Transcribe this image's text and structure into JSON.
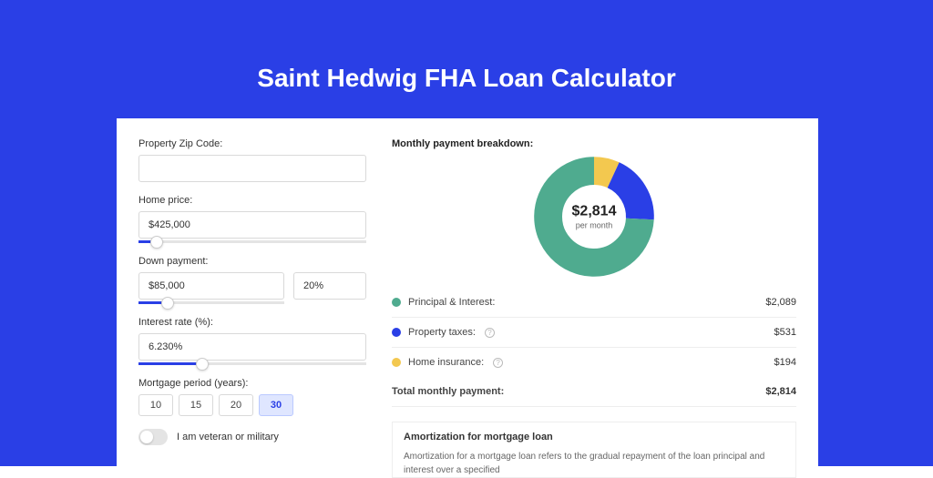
{
  "page": {
    "bg_color": "#2a3fe6",
    "title": "Saint Hedwig FHA Loan Calculator",
    "title_color": "#ffffff",
    "title_fontsize": 28
  },
  "form": {
    "zip": {
      "label": "Property Zip Code:",
      "value": ""
    },
    "home_price": {
      "label": "Home price:",
      "value": "$425,000",
      "slider_pct": 8
    },
    "down_payment": {
      "label": "Down payment:",
      "value": "$85,000",
      "pct_value": "20%",
      "slider_pct": 20
    },
    "interest": {
      "label": "Interest rate (%):",
      "value": "6.230%",
      "slider_pct": 28
    },
    "period": {
      "label": "Mortgage period (years):",
      "options": [
        "10",
        "15",
        "20",
        "30"
      ],
      "selected": "30"
    },
    "veteran": {
      "label": "I am veteran or military",
      "checked": false
    }
  },
  "breakdown": {
    "title": "Monthly payment breakdown:",
    "donut": {
      "center_value": "$2,814",
      "center_sub": "per month",
      "ring_width": 22,
      "segments": [
        {
          "key": "pi",
          "color": "#4fab8f",
          "pct": 74.2
        },
        {
          "key": "tax",
          "color": "#2a3fe6",
          "pct": 18.9
        },
        {
          "key": "ins",
          "color": "#f3c84f",
          "pct": 6.9
        }
      ],
      "background_color": "#ffffff"
    },
    "rows": [
      {
        "key": "pi",
        "label": "Principal & Interest:",
        "value": "$2,089",
        "color": "#4fab8f",
        "info": false
      },
      {
        "key": "tax",
        "label": "Property taxes:",
        "value": "$531",
        "color": "#2a3fe6",
        "info": true
      },
      {
        "key": "ins",
        "label": "Home insurance:",
        "value": "$194",
        "color": "#f3c84f",
        "info": true
      }
    ],
    "total": {
      "label": "Total monthly payment:",
      "value": "$2,814"
    }
  },
  "amortization": {
    "title": "Amortization for mortgage loan",
    "body": "Amortization for a mortgage loan refers to the gradual repayment of the loan principal and interest over a specified"
  }
}
